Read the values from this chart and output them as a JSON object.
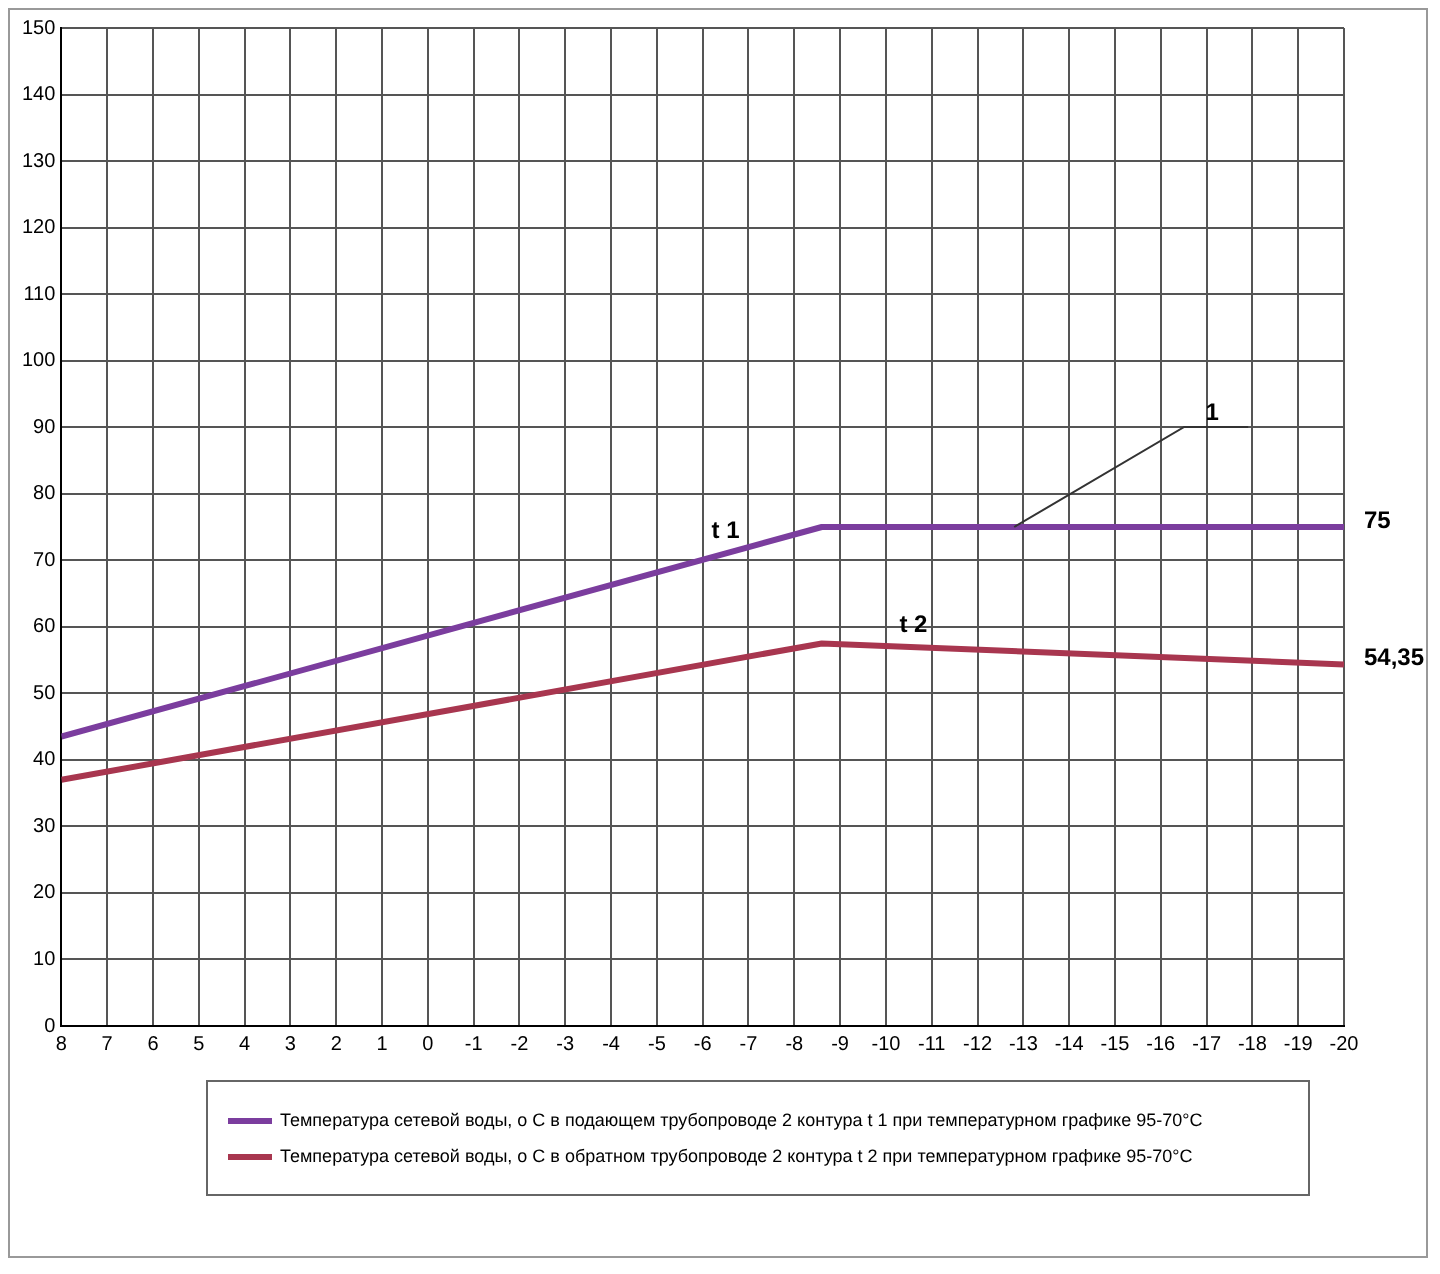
{
  "chart_data": {
    "type": "line",
    "x": [
      8,
      -8.6,
      -20
    ],
    "xlim": [
      8,
      -20
    ],
    "xticks": [
      8,
      7,
      6,
      5,
      4,
      3,
      2,
      1,
      0,
      -1,
      -2,
      -3,
      -4,
      -5,
      -6,
      -7,
      -8,
      -9,
      -10,
      -11,
      -12,
      -13,
      -14,
      -15,
      -16,
      -17,
      -18,
      -19,
      -20
    ],
    "ylim": [
      0,
      150
    ],
    "yticks": [
      0,
      10,
      20,
      30,
      40,
      50,
      60,
      70,
      80,
      90,
      100,
      110,
      120,
      130,
      140,
      150
    ],
    "grid": true,
    "legend": "bottom",
    "marker": "none",
    "line_style": "solid",
    "series": [
      {
        "name": "Температура сетевой воды, о С в подающем трубопроводе 2 контура t 1 при температурном графике 95-70°С",
        "color": "#7b3d9e",
        "values": [
          43.5,
          75,
          75
        ],
        "value_labels": [
          null,
          null,
          "75"
        ]
      },
      {
        "name": "Температура сетевой воды, о С в обратном трубопроводе 2 контура t 2 при температурном графике 95-70°С",
        "color": "#a8364f",
        "values": [
          37,
          57.5,
          54.35
        ],
        "value_labels": [
          null,
          null,
          "54,35"
        ]
      }
    ],
    "annotations": [
      {
        "text": "t 1",
        "x": -6.5,
        "y": 71
      },
      {
        "text": "t 2",
        "x": -10.6,
        "y": 56.95
      },
      {
        "text": "1",
        "x": -12.8,
        "y": 75
      }
    ]
  }
}
